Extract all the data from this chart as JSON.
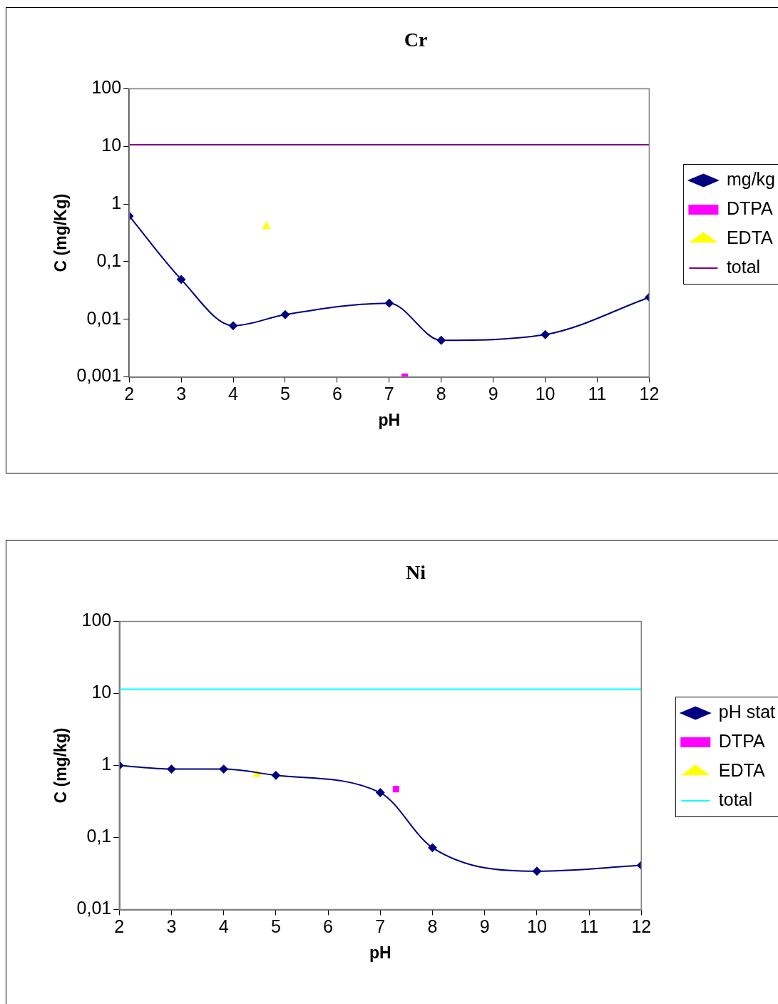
{
  "chart_data": [
    {
      "type": "line",
      "title": "Cr",
      "xlabel": "pH",
      "ylabel": "C (mg/Kg)",
      "xlim": [
        2,
        12
      ],
      "xticks": [
        2,
        3,
        4,
        5,
        6,
        7,
        8,
        9,
        10,
        11,
        12
      ],
      "ylim": [
        0.001,
        100
      ],
      "yticks": [
        {
          "value": 0.001,
          "label": "0,001"
        },
        {
          "value": 0.01,
          "label": "0,01"
        },
        {
          "value": 0.1,
          "label": "0,1"
        },
        1,
        10,
        100
      ],
      "log": "y",
      "grid": false,
      "legend": "right",
      "series": [
        {
          "name": "mg/kg",
          "color": "#000080",
          "type": "line",
          "marker": "diamond",
          "x": [
            2,
            3,
            4,
            5,
            7,
            8,
            10,
            12
          ],
          "values": [
            0.62,
            0.049,
            0.0077,
            0.012,
            0.019,
            0.0043,
            0.0054,
            0.024
          ]
        },
        {
          "name": "DTPA",
          "color": "#ff00ff",
          "type": "scatter",
          "marker": "square",
          "x": [
            7.3
          ],
          "values": [
            0.001
          ]
        },
        {
          "name": "EDTA",
          "color": "#ffff00",
          "type": "scatter",
          "marker": "triangle",
          "x": [
            4.64
          ],
          "values": [
            0.41
          ]
        },
        {
          "name": "total",
          "color": "#800080",
          "type": "line",
          "marker": "none",
          "x": [
            2,
            12
          ],
          "values": [
            10.7,
            10.7
          ]
        }
      ]
    },
    {
      "type": "line",
      "title": "Ni",
      "xlabel": "pH",
      "ylabel": "C (mg/kg)",
      "xlim": [
        2,
        12
      ],
      "xticks": [
        2,
        3,
        4,
        5,
        6,
        7,
        8,
        9,
        10,
        11,
        12
      ],
      "ylim": [
        0.01,
        100
      ],
      "yticks": [
        {
          "value": 0.01,
          "label": "0,01"
        },
        {
          "value": 0.1,
          "label": "0,1"
        },
        1,
        10,
        100
      ],
      "log": "y",
      "grid": false,
      "legend": "right",
      "series": [
        {
          "name": "pH stat",
          "color": "#000080",
          "type": "line",
          "marker": "diamond",
          "x": [
            2,
            3,
            4,
            5,
            7,
            8,
            10,
            12
          ],
          "values": [
            1.0,
            0.89,
            0.89,
            0.73,
            0.42,
            0.072,
            0.034,
            0.041
          ]
        },
        {
          "name": "DTPA",
          "color": "#ff00ff",
          "type": "scatter",
          "marker": "square",
          "x": [
            7.3
          ],
          "values": [
            0.47
          ]
        },
        {
          "name": "EDTA",
          "color": "#ffff00",
          "type": "scatter",
          "marker": "triangle",
          "x": [
            4.64
          ],
          "values": [
            0.75
          ]
        },
        {
          "name": "total",
          "color": "#00ffff",
          "type": "line",
          "marker": "none",
          "x": [
            2,
            12
          ],
          "values": [
            11.5,
            11.5
          ]
        }
      ]
    }
  ]
}
